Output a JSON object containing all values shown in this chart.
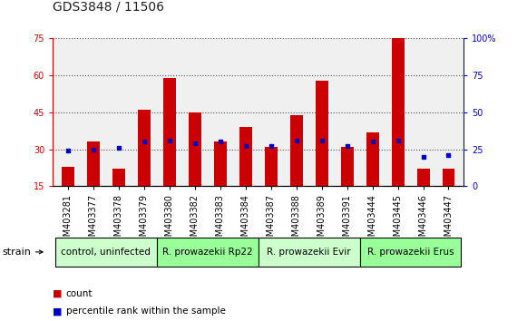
{
  "title": "GDS3848 / 11506",
  "samples": [
    "GSM403281",
    "GSM403377",
    "GSM403378",
    "GSM403379",
    "GSM403380",
    "GSM403382",
    "GSM403383",
    "GSM403384",
    "GSM403387",
    "GSM403388",
    "GSM403389",
    "GSM403391",
    "GSM403444",
    "GSM403445",
    "GSM403446",
    "GSM403447"
  ],
  "counts": [
    23,
    33,
    22,
    46,
    59,
    45,
    33,
    39,
    31,
    44,
    58,
    31,
    37,
    75,
    22,
    22
  ],
  "percentile_ranks": [
    24,
    25,
    26,
    30,
    31,
    29,
    30,
    27,
    27,
    31,
    31,
    27,
    30,
    31,
    20,
    21
  ],
  "groups": [
    {
      "label": "control, uninfected",
      "start": 0,
      "end": 4,
      "color": "#ccffcc"
    },
    {
      "label": "R. prowazekii Rp22",
      "start": 4,
      "end": 8,
      "color": "#99ff99"
    },
    {
      "label": "R. prowazekii Evir",
      "start": 8,
      "end": 12,
      "color": "#ccffcc"
    },
    {
      "label": "R. prowazekii Erus",
      "start": 12,
      "end": 16,
      "color": "#99ff99"
    }
  ],
  "ylim_left": [
    15,
    75
  ],
  "ylim_right": [
    0,
    100
  ],
  "yticks_left": [
    15,
    30,
    45,
    60,
    75
  ],
  "yticks_right": [
    0,
    25,
    50,
    75,
    100
  ],
  "bar_color": "#cc0000",
  "dot_color": "#0000cc",
  "bar_width": 0.5,
  "background_color": "#ffffff",
  "plot_bg": "#f0f0f0",
  "title_color": "#222222",
  "left_tick_color": "#cc0000",
  "right_tick_color": "#0000cc",
  "legend_count_label": "count",
  "legend_pct_label": "percentile rank within the sample",
  "strain_label": "strain",
  "group_label_fontsize": 7.5,
  "tick_fontsize": 7,
  "title_fontsize": 10,
  "right_yaxis_label": "%"
}
